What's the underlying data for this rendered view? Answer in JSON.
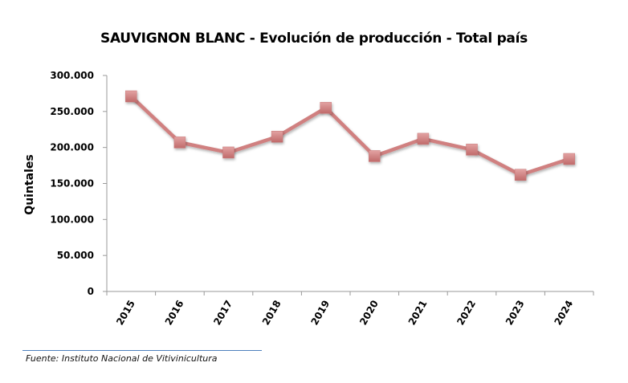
{
  "chart_data": {
    "type": "line",
    "title": "SAUVIGNON BLANC - Evolución de producción - Total país",
    "xlabel": "",
    "ylabel": "Quintales",
    "categories": [
      "2015",
      "2016",
      "2017",
      "2018",
      "2019",
      "2020",
      "2021",
      "2022",
      "2023",
      "2024"
    ],
    "series": [
      {
        "name": "Sauvignon Blanc",
        "values": [
          271000,
          207000,
          193000,
          215000,
          255000,
          188000,
          212000,
          197000,
          162000,
          184000
        ],
        "color": "#d08080"
      }
    ],
    "ylim": [
      0,
      300000
    ],
    "yticks": [
      0,
      50000,
      100000,
      150000,
      200000,
      250000,
      300000
    ],
    "ytick_labels": [
      "0",
      "50.000",
      "100.000",
      "150.000",
      "200.000",
      "250.000",
      "300.000"
    ],
    "grid": false,
    "legend": "none",
    "marker": "square"
  },
  "source": "Fuente: Instituto Nacional de Vitivinicultura"
}
